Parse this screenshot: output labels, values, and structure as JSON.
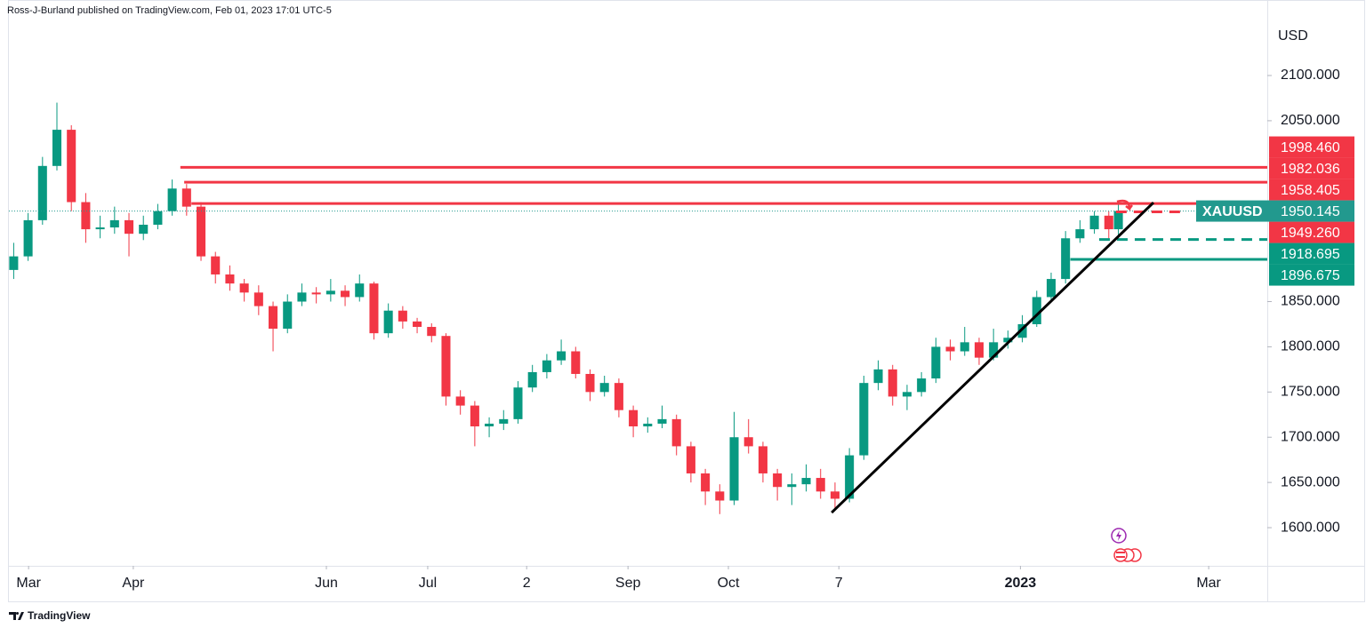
{
  "header": {
    "text": "Ross-J-Burland published on TradingView.com, Feb 01, 2023 17:01 UTC-5"
  },
  "footer": {
    "brand": "TradingView"
  },
  "chart_data": {
    "type": "candlestick",
    "currency": "USD",
    "up_color": "#089981",
    "down_color": "#f23645",
    "xlim": [
      0,
      262
    ],
    "ylim": [
      1557.8,
      2183.5
    ],
    "yticks": [
      {
        "value": 1600,
        "label": "1600.000"
      },
      {
        "value": 1650,
        "label": "1650.000"
      },
      {
        "value": 1700,
        "label": "1700.000"
      },
      {
        "value": 1750,
        "label": "1750.000"
      },
      {
        "value": 1800,
        "label": "1800.000"
      },
      {
        "value": 1850,
        "label": "1850.000"
      },
      {
        "value": 2050,
        "label": "2050.000"
      },
      {
        "value": 2100,
        "label": "2100.000"
      }
    ],
    "xticks": [
      {
        "value": 4.1,
        "label": "Mar"
      },
      {
        "value": 25.9,
        "label": "Apr"
      },
      {
        "value": 66.1,
        "label": "Jun"
      },
      {
        "value": 87.2,
        "label": "Jul"
      },
      {
        "value": 107.8,
        "label": "2"
      },
      {
        "value": 128.9,
        "label": "Sep"
      },
      {
        "value": 149.8,
        "label": "Oct"
      },
      {
        "value": 172.8,
        "label": "7"
      },
      {
        "value": 210.6,
        "label": "2023"
      },
      {
        "value": 249.8,
        "label": "Mar"
      }
    ],
    "x": [
      1,
      4,
      7,
      10,
      13,
      16,
      19,
      22,
      25,
      28,
      31,
      34,
      37,
      40,
      43,
      46,
      49,
      52,
      55,
      58,
      61,
      64,
      67,
      70,
      73,
      76,
      79,
      82,
      85,
      88,
      91,
      94,
      97,
      100,
      103,
      106,
      109,
      112,
      115,
      118,
      121,
      124,
      127,
      130,
      133,
      136,
      139,
      142,
      145,
      148,
      151,
      154,
      157,
      160,
      163,
      166,
      169,
      172,
      175,
      178,
      181,
      184,
      187,
      190,
      193,
      196,
      199,
      202,
      205,
      208,
      211,
      214,
      217,
      220,
      223,
      226,
      229,
      231
    ],
    "open": [
      1885,
      1900,
      1940,
      2000,
      2040,
      1960,
      1930,
      1932,
      1940,
      1925,
      1935,
      1950,
      1975,
      1955,
      1900,
      1880,
      1870,
      1860,
      1845,
      1820,
      1850,
      1860,
      1858,
      1862,
      1855,
      1870,
      1815,
      1840,
      1828,
      1822,
      1812,
      1745,
      1735,
      1712,
      1715,
      1720,
      1755,
      1772,
      1785,
      1795,
      1770,
      1750,
      1760,
      1730,
      1712,
      1715,
      1720,
      1690,
      1660,
      1640,
      1630,
      1700,
      1690,
      1660,
      1645,
      1648,
      1655,
      1640,
      1632,
      1680,
      1760,
      1775,
      1745,
      1750,
      1765,
      1800,
      1795,
      1805,
      1788,
      1805,
      1810,
      1825,
      1855,
      1875,
      1920,
      1930,
      1945,
      1930
    ],
    "high": [
      1915,
      1948,
      2010,
      2070,
      2045,
      1970,
      1945,
      1955,
      1948,
      1945,
      1958,
      1985,
      1980,
      1960,
      1905,
      1890,
      1875,
      1868,
      1850,
      1858,
      1870,
      1866,
      1875,
      1868,
      1880,
      1872,
      1848,
      1845,
      1832,
      1826,
      1815,
      1752,
      1740,
      1722,
      1730,
      1762,
      1780,
      1792,
      1808,
      1800,
      1775,
      1768,
      1765,
      1735,
      1722,
      1735,
      1725,
      1695,
      1665,
      1648,
      1728,
      1720,
      1695,
      1665,
      1660,
      1670,
      1665,
      1650,
      1688,
      1768,
      1785,
      1780,
      1758,
      1772,
      1810,
      1808,
      1822,
      1810,
      1820,
      1818,
      1835,
      1862,
      1882,
      1928,
      1940,
      1950,
      1950,
      1960
    ],
    "low": [
      1875,
      1895,
      1935,
      1995,
      1950,
      1915,
      1920,
      1925,
      1900,
      1918,
      1930,
      1945,
      1945,
      1895,
      1870,
      1862,
      1850,
      1835,
      1795,
      1815,
      1845,
      1848,
      1850,
      1845,
      1850,
      1808,
      1810,
      1820,
      1815,
      1805,
      1735,
      1725,
      1690,
      1700,
      1708,
      1715,
      1750,
      1765,
      1780,
      1765,
      1740,
      1745,
      1722,
      1700,
      1705,
      1710,
      1680,
      1650,
      1625,
      1615,
      1625,
      1682,
      1650,
      1630,
      1625,
      1640,
      1632,
      1620,
      1628,
      1675,
      1752,
      1735,
      1730,
      1745,
      1760,
      1785,
      1790,
      1780,
      1785,
      1798,
      1805,
      1822,
      1850,
      1870,
      1915,
      1925,
      1920,
      1918
    ],
    "close": [
      1900,
      1940,
      2000,
      2040,
      1960,
      1930,
      1932,
      1940,
      1925,
      1935,
      1950,
      1975,
      1955,
      1900,
      1880,
      1870,
      1860,
      1845,
      1820,
      1850,
      1860,
      1858,
      1862,
      1855,
      1870,
      1815,
      1840,
      1828,
      1822,
      1812,
      1745,
      1735,
      1712,
      1715,
      1720,
      1755,
      1772,
      1785,
      1795,
      1770,
      1750,
      1760,
      1730,
      1712,
      1715,
      1720,
      1690,
      1660,
      1640,
      1630,
      1700,
      1690,
      1660,
      1645,
      1648,
      1655,
      1640,
      1632,
      1680,
      1760,
      1775,
      1745,
      1750,
      1765,
      1800,
      1795,
      1805,
      1788,
      1805,
      1810,
      1825,
      1855,
      1875,
      1920,
      1930,
      1945,
      1930,
      1950.145
    ],
    "levels": [
      {
        "value": 1998.46,
        "label": "1998.460",
        "color": "#f23645",
        "style": "solid",
        "start": 35.7
      },
      {
        "value": 1982.036,
        "label": "1982.036",
        "color": "#f23645",
        "style": "solid",
        "start": 36.5
      },
      {
        "value": 1958.405,
        "label": "1958.405",
        "color": "#f23645",
        "style": "solid",
        "start": 38
      },
      {
        "value": 1949.26,
        "label": "1949.260",
        "color": "#f23645",
        "style": "dashed",
        "start": 230.5,
        "end": 244
      },
      {
        "value": 1918.695,
        "label": "1918.695",
        "color": "#089981",
        "style": "dashed",
        "start": 227
      },
      {
        "value": 1896.675,
        "label": "1896.675",
        "color": "#089981",
        "style": "solid",
        "start": 221
      }
    ],
    "trendline": [
      {
        "x": 171.3,
        "y": 1616.7
      },
      {
        "x": 238.3,
        "y": 1959.5
      }
    ],
    "price_label": {
      "name": "XAUUSD",
      "value": 1950.145,
      "label": "1950.145",
      "color": "#22998e"
    }
  }
}
